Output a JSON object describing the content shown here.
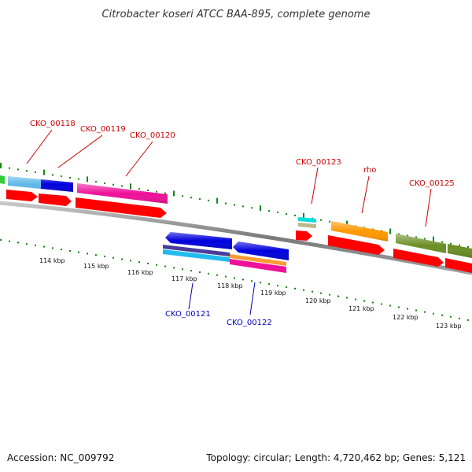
{
  "title": "Citrobacter koseri ATCC BAA-895, complete genome",
  "footer": {
    "accession": "Accession: NC_009792",
    "summary": "Topology: circular; Length: 4,720,462 bp; Genes: 5,121"
  },
  "colors": {
    "forward_label": "#cc0000",
    "reverse_label": "#0000bb",
    "tick": "#118811",
    "backbone": "#888888",
    "cds": "#ff0000"
  },
  "scale": {
    "unit": "kbp",
    "labels": [
      "114 kbp",
      "115 kbp",
      "116 kbp",
      "117 kbp",
      "118 kbp",
      "119 kbp",
      "120 kbp",
      "121 kbp",
      "122 kbp",
      "123 kbp"
    ]
  },
  "genes_forward": [
    {
      "name": "CKO_00118",
      "color": "#6ab6e6"
    },
    {
      "name": "CKO_00119",
      "color": "#0000dd"
    },
    {
      "name": "CKO_00120",
      "color": "#ee1199"
    },
    {
      "name": "CKO_00123",
      "color": "#a8c8a0"
    },
    {
      "name": "rho",
      "color": "#ff8c00"
    },
    {
      "name": "CKO_00125",
      "color": "#6b8e23"
    }
  ],
  "genes_reverse": [
    {
      "name": "CKO_00121",
      "color": "#0000dd"
    },
    {
      "name": "CKO_00122",
      "color": "#0000dd"
    }
  ]
}
